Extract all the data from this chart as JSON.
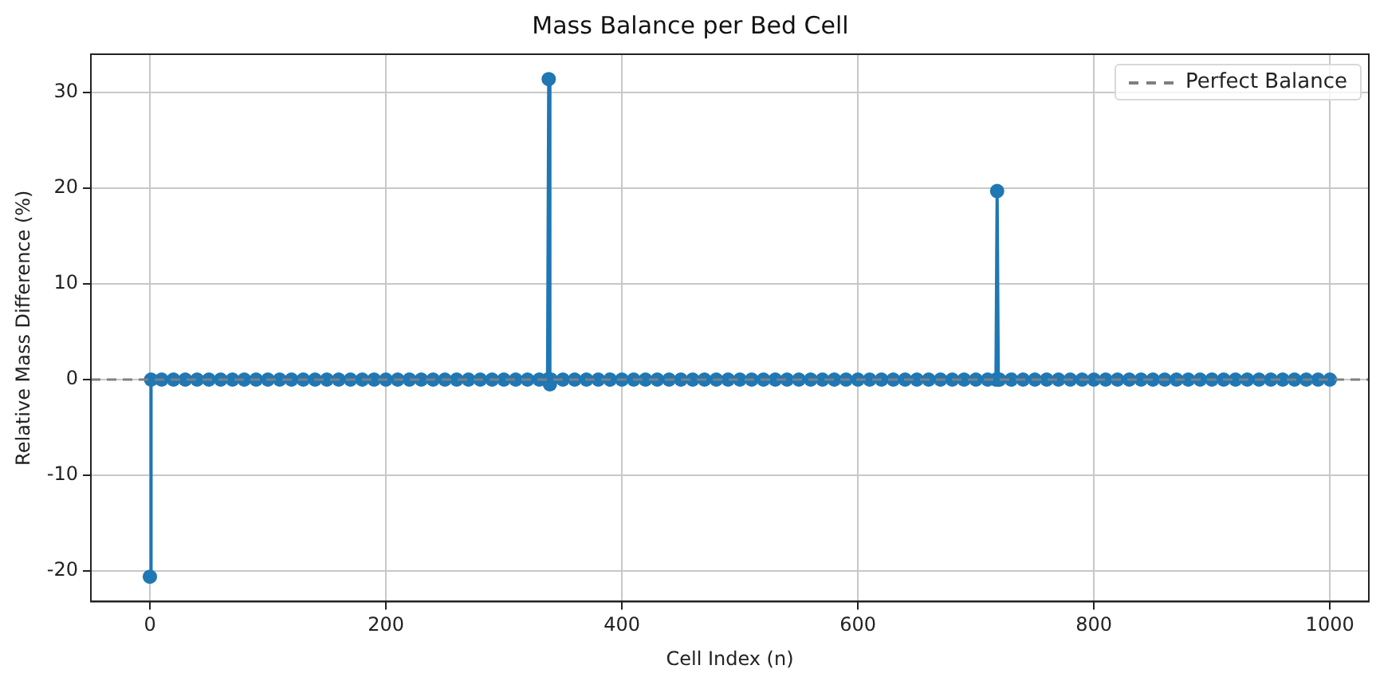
{
  "chart_data": {
    "type": "line",
    "title": "Mass Balance per Bed Cell",
    "xlabel": "Cell Index (n)",
    "ylabel": "Relative Mass Difference (%)",
    "x": [
      0,
      1,
      10,
      20,
      30,
      40,
      50,
      60,
      70,
      80,
      90,
      100,
      110,
      120,
      130,
      140,
      150,
      160,
      170,
      180,
      190,
      200,
      210,
      220,
      230,
      240,
      250,
      260,
      270,
      280,
      290,
      300,
      310,
      320,
      330,
      337,
      338,
      339,
      340,
      350,
      360,
      370,
      380,
      390,
      400,
      410,
      420,
      430,
      440,
      450,
      460,
      470,
      480,
      490,
      500,
      510,
      520,
      530,
      540,
      550,
      560,
      570,
      580,
      590,
      600,
      610,
      620,
      630,
      640,
      650,
      660,
      670,
      680,
      690,
      700,
      710,
      717,
      718,
      719,
      720,
      730,
      740,
      750,
      760,
      770,
      780,
      790,
      800,
      810,
      820,
      830,
      840,
      850,
      860,
      870,
      880,
      890,
      900,
      910,
      920,
      930,
      940,
      950,
      960,
      970,
      980,
      990,
      1000
    ],
    "series": [
      {
        "color": "#1f77b4",
        "values": [
          -20.6,
          0,
          0,
          0,
          0,
          0,
          0,
          0,
          0,
          0,
          0,
          0,
          0,
          0,
          0,
          0,
          0,
          0,
          0,
          0,
          0,
          0,
          0,
          0,
          0,
          0,
          0,
          0,
          0,
          0,
          0,
          0,
          0,
          0,
          0,
          0,
          31.4,
          -0.5,
          0,
          0,
          0,
          0,
          0,
          0,
          0,
          0,
          0,
          0,
          0,
          0,
          0,
          0,
          0,
          0,
          0,
          0,
          0,
          0,
          0,
          0,
          0,
          0,
          0,
          0,
          0,
          0,
          0,
          0,
          0,
          0,
          0,
          0,
          0,
          0,
          0,
          0,
          0,
          19.7,
          0,
          0,
          0,
          0,
          0,
          0,
          0,
          0,
          0,
          0,
          0,
          0,
          0,
          0,
          0,
          0,
          0,
          0,
          0,
          0,
          0,
          0,
          0,
          0,
          0,
          0,
          0,
          0,
          0,
          0
        ]
      }
    ],
    "xlim": [
      -50,
      1033
    ],
    "xticks": [
      0,
      200,
      400,
      600,
      800,
      1000
    ],
    "ylim": [
      -23.2,
      34
    ],
    "yticks": [
      -20,
      -10,
      0,
      10,
      20,
      30
    ],
    "ref_lines": [
      {
        "axis": "y",
        "value": 0,
        "label": "Perfect Balance",
        "color": "#808080",
        "line_style": "dashed"
      }
    ],
    "grid": true,
    "legend": "top right",
    "marker": "circle",
    "line_style": "solid"
  }
}
